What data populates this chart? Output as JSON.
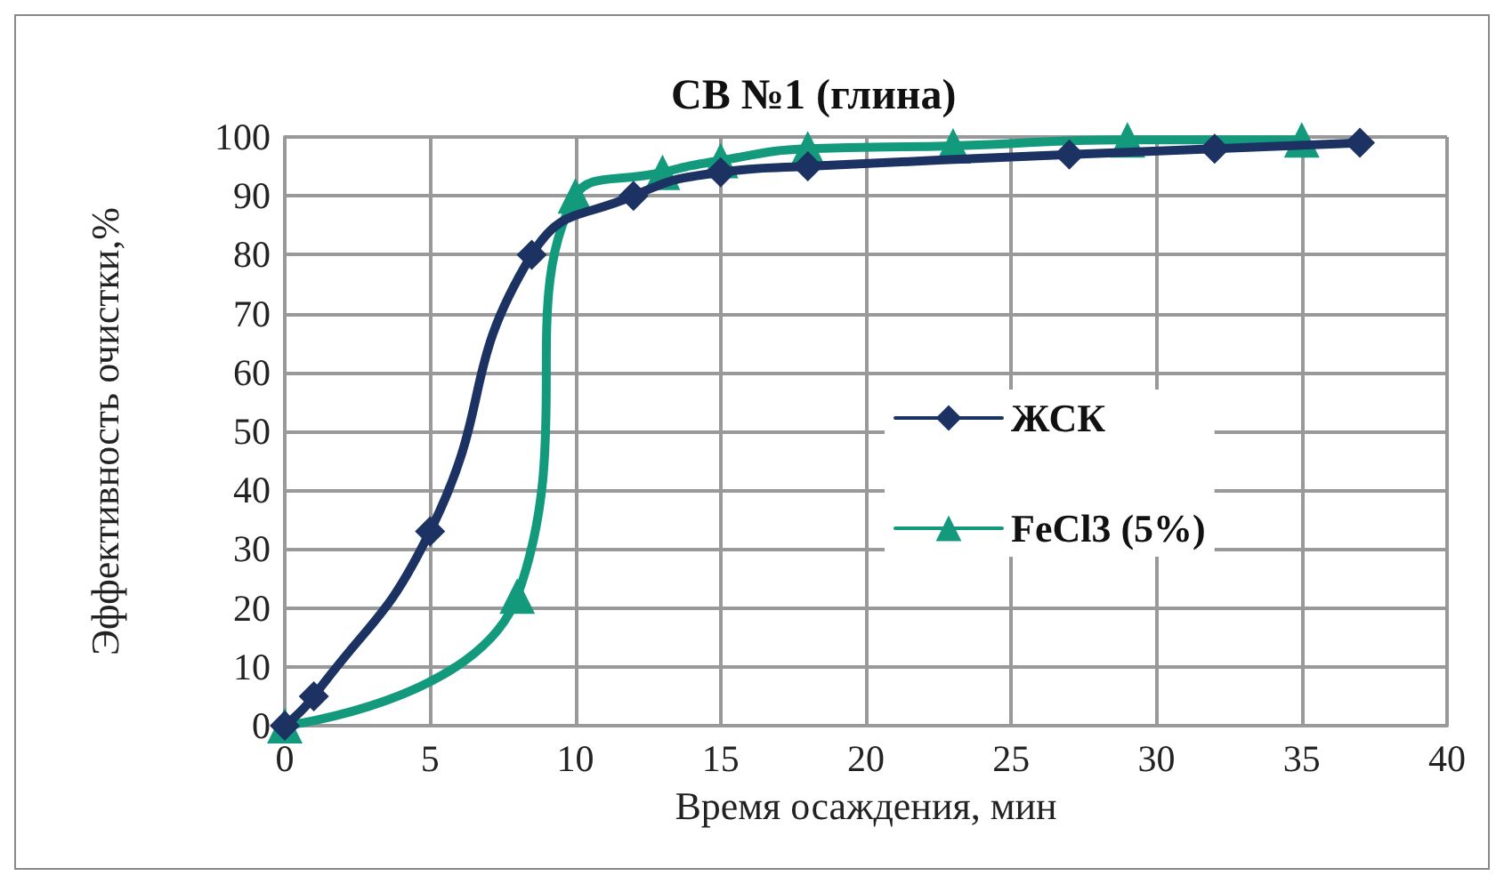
{
  "chart_data": {
    "type": "line",
    "title": "СВ №1 (глина)",
    "xlabel": "Время осаждения, мин",
    "ylabel": "Эффективность очистки,%",
    "xlim": [
      0,
      40
    ],
    "xticks": [
      0,
      5,
      10,
      15,
      20,
      25,
      30,
      35,
      40
    ],
    "ylim": [
      0,
      100
    ],
    "yticks": [
      0,
      10,
      20,
      30,
      40,
      50,
      60,
      70,
      80,
      90,
      100
    ],
    "grid": true,
    "legend": "right",
    "line_style": "solid",
    "series": [
      {
        "name": "ЖСК",
        "color": "#1b3263",
        "marker": "diamond",
        "x": [
          0,
          1,
          5,
          8.5,
          12,
          15,
          18,
          27,
          32,
          37
        ],
        "values": [
          0,
          5,
          33,
          80,
          90,
          94,
          95,
          97,
          98,
          99
        ]
      },
      {
        "name": "FeCl3 (5%)",
        "color": "#139a7c",
        "marker": "triangle",
        "x": [
          0,
          8,
          10,
          13,
          15,
          18,
          23,
          29,
          35
        ],
        "values": [
          0,
          22,
          90,
          94,
          96,
          98,
          98.5,
          99.5,
          99.5
        ]
      }
    ]
  }
}
